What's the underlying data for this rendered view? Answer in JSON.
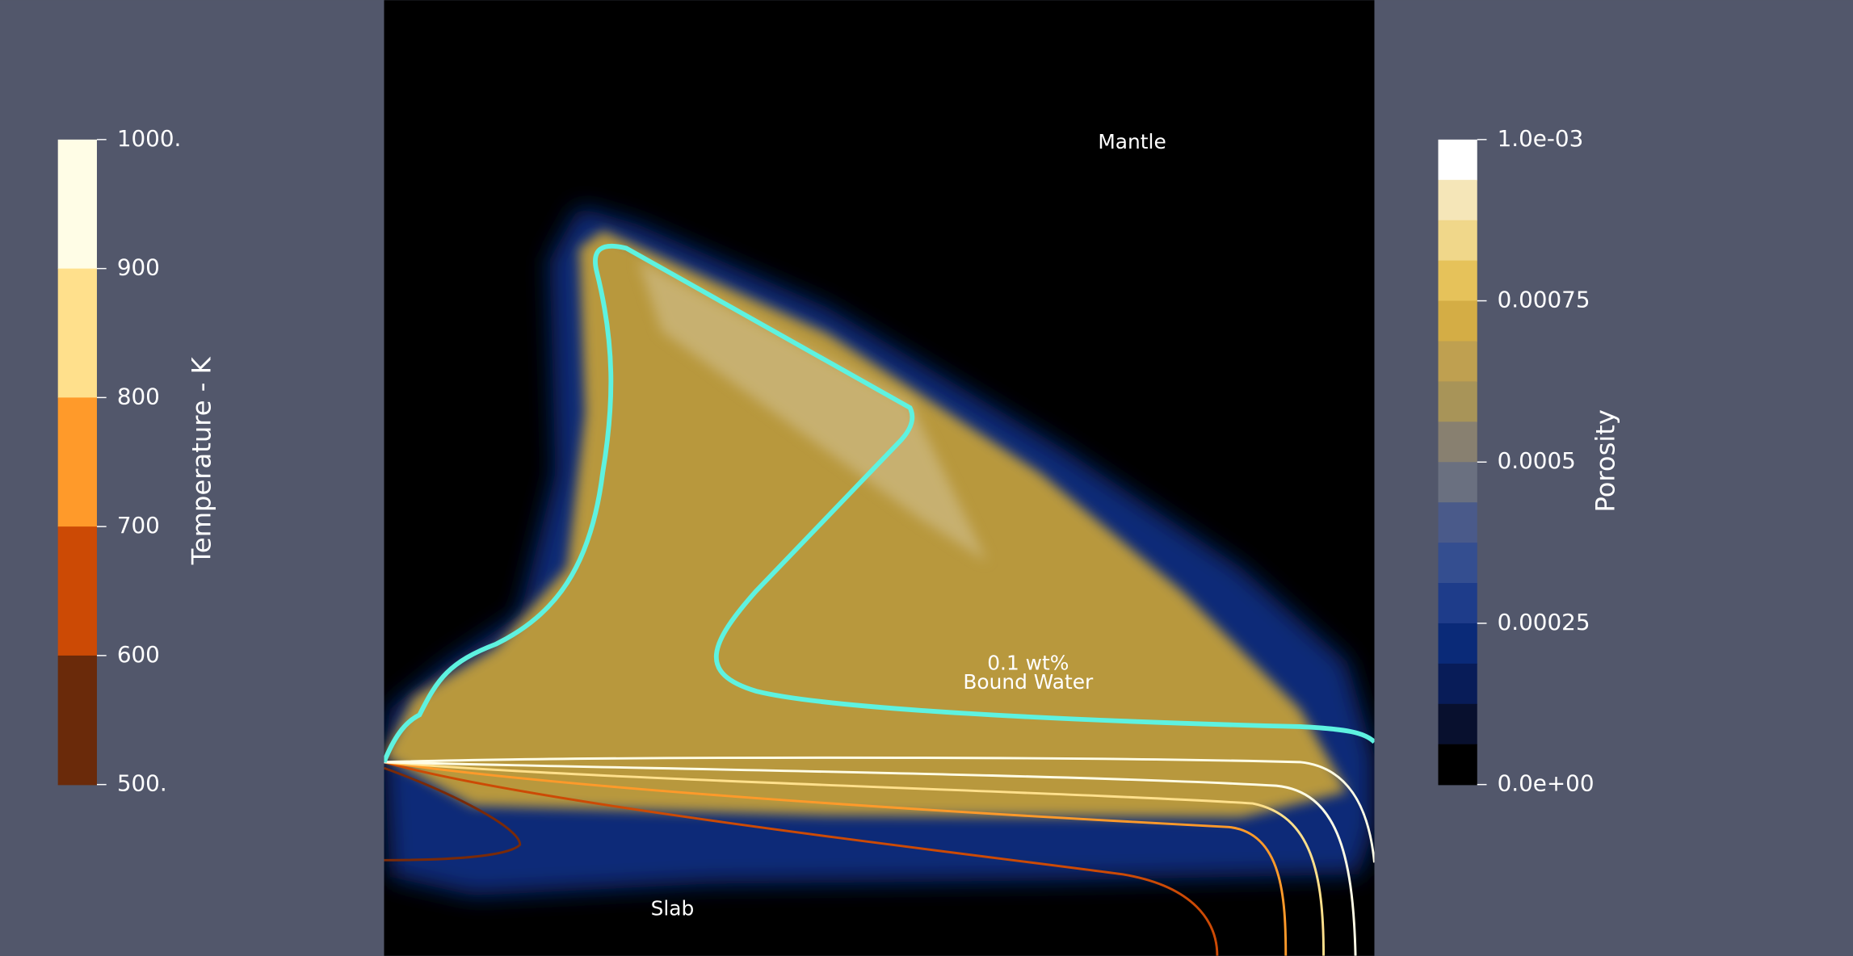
{
  "left_colorbar": {
    "title": "Temperature - K",
    "ticks": [
      "1000.",
      "900",
      "800",
      "700",
      "600",
      "500."
    ],
    "colors": [
      "#fffde6",
      "#ffe08c",
      "#ff9a2a",
      "#cc4a05",
      "#6a2a0a"
    ]
  },
  "right_colorbar": {
    "title": "Porosity",
    "ticks": [
      "1.0e-03",
      "0.00075",
      "0.0005",
      "0.00025",
      "0.0e+00"
    ],
    "colors": [
      "#ffffff",
      "#f5e6b8",
      "#f0d78a",
      "#e6c25a",
      "#d4ad45",
      "#bfa050",
      "#a89458",
      "#888070",
      "#6a7080",
      "#4a5a8a",
      "#344e90",
      "#1e3c8a",
      "#0a2a78",
      "#081c58",
      "#08102e",
      "#000000"
    ]
  },
  "labels": {
    "mantle": "Mantle",
    "slab": "Slab",
    "contour": [
      "0.1 wt%",
      "Bound Water"
    ]
  }
}
